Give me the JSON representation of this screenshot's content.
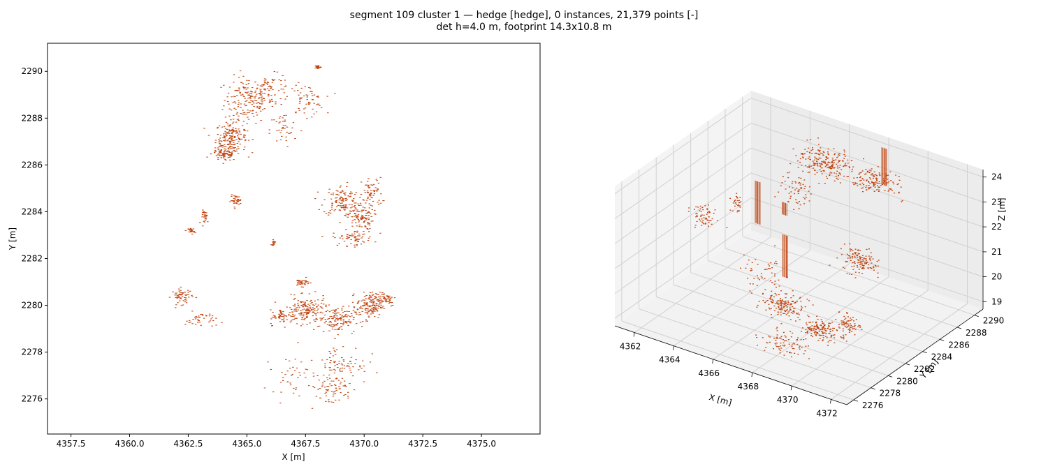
{
  "figure": {
    "title_line1": "segment 109 cluster 1 — hedge [hedge], 0 instances, 21,379 points [-]",
    "title_line2": "det h=4.0 m, footprint 14.3x10.8 m"
  },
  "colors": {
    "points": "#c0440f",
    "axis": "#000000",
    "pane": "#f2f2f2",
    "grid": "#d0d0d0"
  },
  "chart_data": [
    {
      "type": "scatter",
      "view": "top-down XY",
      "xlabel": "X [m]",
      "ylabel": "Y [m]",
      "xlim": [
        4356.5,
        4377.5
      ],
      "ylim": [
        2274.5,
        2291.2
      ],
      "xticks": [
        4357.5,
        4360.0,
        4362.5,
        4365.0,
        4367.5,
        4370.0,
        4372.5,
        4375.0
      ],
      "xtick_labels": [
        "4357.5",
        "4360.0",
        "4362.5",
        "4365.0",
        "4367.5",
        "4370.0",
        "4372.5",
        "4375.0"
      ],
      "yticks": [
        2276,
        2278,
        2280,
        2282,
        2284,
        2286,
        2288,
        2290
      ],
      "ytick_labels": [
        "2276",
        "2278",
        "2280",
        "2282",
        "2284",
        "2286",
        "2288",
        "2290"
      ],
      "grid": false,
      "point_count": 21379,
      "clusters": [
        {
          "x": 4365.0,
          "y": 2288.8,
          "sx": 0.9,
          "sy": 0.9,
          "n": 160
        },
        {
          "x": 4364.3,
          "y": 2287.2,
          "sx": 0.6,
          "sy": 0.6,
          "n": 180
        },
        {
          "x": 4364.0,
          "y": 2286.5,
          "sx": 0.5,
          "sy": 0.3,
          "n": 90
        },
        {
          "x": 4366.0,
          "y": 2289.2,
          "sx": 0.8,
          "sy": 0.6,
          "n": 80
        },
        {
          "x": 4367.5,
          "y": 2288.8,
          "sx": 0.7,
          "sy": 0.6,
          "n": 60
        },
        {
          "x": 4366.5,
          "y": 2287.5,
          "sx": 0.5,
          "sy": 0.7,
          "n": 40
        },
        {
          "x": 4368.0,
          "y": 2290.2,
          "sx": 0.12,
          "sy": 0.08,
          "n": 30
        },
        {
          "x": 4369.0,
          "y": 2284.5,
          "sx": 0.7,
          "sy": 0.6,
          "n": 120
        },
        {
          "x": 4369.8,
          "y": 2283.8,
          "sx": 0.5,
          "sy": 0.5,
          "n": 110
        },
        {
          "x": 4370.3,
          "y": 2284.8,
          "sx": 0.4,
          "sy": 0.6,
          "n": 60
        },
        {
          "x": 4369.5,
          "y": 2282.9,
          "sx": 0.8,
          "sy": 0.3,
          "n": 70
        },
        {
          "x": 4364.5,
          "y": 2284.5,
          "sx": 0.2,
          "sy": 0.2,
          "n": 40
        },
        {
          "x": 4363.2,
          "y": 2283.8,
          "sx": 0.15,
          "sy": 0.25,
          "n": 30
        },
        {
          "x": 4362.6,
          "y": 2283.2,
          "sx": 0.12,
          "sy": 0.12,
          "n": 25
        },
        {
          "x": 4366.1,
          "y": 2282.7,
          "sx": 0.08,
          "sy": 0.1,
          "n": 15
        },
        {
          "x": 4362.2,
          "y": 2280.4,
          "sx": 0.4,
          "sy": 0.3,
          "n": 60
        },
        {
          "x": 4363.0,
          "y": 2279.4,
          "sx": 0.6,
          "sy": 0.3,
          "n": 40
        },
        {
          "x": 4367.3,
          "y": 2281.0,
          "sx": 0.3,
          "sy": 0.15,
          "n": 40
        },
        {
          "x": 4367.5,
          "y": 2279.8,
          "sx": 0.8,
          "sy": 0.5,
          "n": 170
        },
        {
          "x": 4368.8,
          "y": 2279.4,
          "sx": 0.7,
          "sy": 0.5,
          "n": 130
        },
        {
          "x": 4370.2,
          "y": 2280.0,
          "sx": 0.5,
          "sy": 0.5,
          "n": 140
        },
        {
          "x": 4370.8,
          "y": 2280.3,
          "sx": 0.5,
          "sy": 0.3,
          "n": 60
        },
        {
          "x": 4366.5,
          "y": 2279.5,
          "sx": 0.5,
          "sy": 0.3,
          "n": 50
        },
        {
          "x": 4369.0,
          "y": 2277.5,
          "sx": 1.0,
          "sy": 0.8,
          "n": 90
        },
        {
          "x": 4368.5,
          "y": 2276.4,
          "sx": 0.9,
          "sy": 0.6,
          "n": 60
        },
        {
          "x": 4366.8,
          "y": 2277.0,
          "sx": 0.7,
          "sy": 0.7,
          "n": 40
        }
      ]
    },
    {
      "type": "scatter3d",
      "xlabel": "X [m]",
      "ylabel": "Y [m]",
      "zlabel": "Z [m]",
      "xlim": [
        4361,
        4372.8
      ],
      "ylim": [
        2275.2,
        2291
      ],
      "zlim": [
        18.7,
        24.3
      ],
      "xticks": [
        4362,
        4364,
        4366,
        4368,
        4370,
        4372
      ],
      "yticks": [
        2276,
        2278,
        2280,
        2282,
        2284,
        2286,
        2288,
        2290
      ],
      "zticks": [
        19,
        20,
        21,
        22,
        23,
        24
      ],
      "grid": true,
      "clusters": [
        {
          "x": 4366.0,
          "y": 2288.0,
          "z": 23.5,
          "sx": 1.2,
          "sy": 1.2,
          "sz": 0.3,
          "n": 220
        },
        {
          "x": 4368.5,
          "y": 2288.5,
          "z": 23.3,
          "sx": 1.0,
          "sy": 1.0,
          "sz": 0.3,
          "n": 140
        },
        {
          "x": 4369.5,
          "y": 2284.0,
          "z": 21.5,
          "sx": 0.7,
          "sy": 0.6,
          "sz": 0.4,
          "n": 130
        },
        {
          "x": 4365.5,
          "y": 2286.0,
          "z": 22.8,
          "sx": 0.6,
          "sy": 0.6,
          "sz": 0.5,
          "n": 60
        },
        {
          "x": 4362.5,
          "y": 2282.0,
          "z": 21.8,
          "sx": 0.5,
          "sy": 0.6,
          "sz": 0.4,
          "n": 60
        },
        {
          "x": 4363.5,
          "y": 2283.5,
          "z": 22.3,
          "sx": 0.3,
          "sy": 0.3,
          "sz": 0.3,
          "n": 30
        },
        {
          "x": 4367.5,
          "y": 2279.8,
          "z": 20.2,
          "sx": 0.8,
          "sy": 0.6,
          "sz": 0.3,
          "n": 160
        },
        {
          "x": 4369.5,
          "y": 2279.5,
          "z": 19.8,
          "sx": 0.8,
          "sy": 0.6,
          "sz": 0.3,
          "n": 150
        },
        {
          "x": 4370.5,
          "y": 2280.5,
          "z": 20.0,
          "sx": 0.5,
          "sy": 0.5,
          "sz": 0.3,
          "n": 70
        },
        {
          "x": 4368.5,
          "y": 2277.5,
          "z": 19.5,
          "sx": 0.9,
          "sy": 0.8,
          "sz": 0.3,
          "n": 80
        },
        {
          "x": 4366.0,
          "y": 2281.0,
          "z": 20.8,
          "sx": 0.8,
          "sy": 1.2,
          "sz": 0.5,
          "n": 50
        }
      ],
      "spikes": [
        {
          "x": 4364.2,
          "y": 2284.2,
          "z0": 21.5,
          "z1": 23.2
        },
        {
          "x": 4368.0,
          "y": 2290.2,
          "z0": 22.6,
          "z1": 24.1
        },
        {
          "x": 4366.3,
          "y": 2282.6,
          "z0": 20.3,
          "z1": 22.0
        },
        {
          "x": 4365.3,
          "y": 2284.8,
          "z0": 22.0,
          "z1": 22.5
        }
      ]
    }
  ]
}
